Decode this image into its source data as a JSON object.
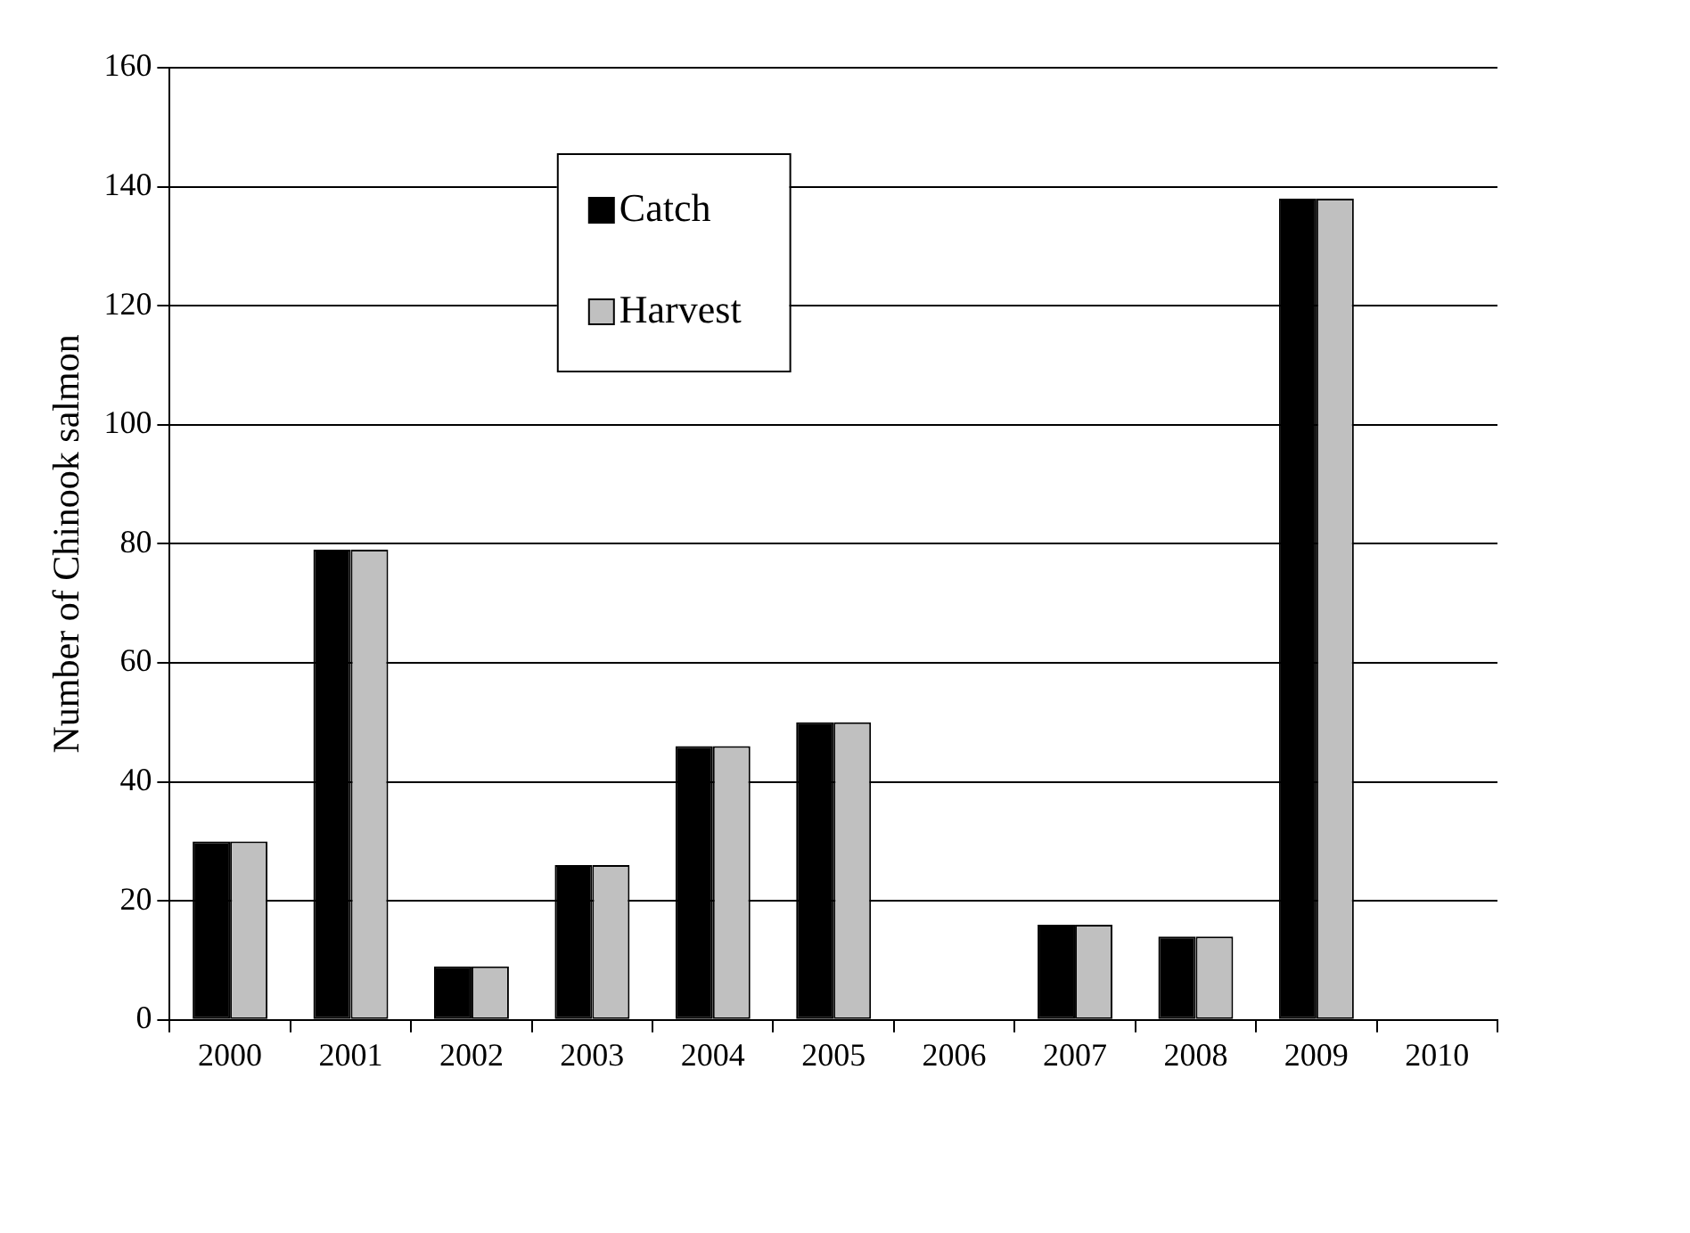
{
  "chart_data": {
    "type": "bar",
    "ylabel": "Number of Chinook salmon",
    "categories": [
      "2000",
      "2001",
      "2002",
      "2003",
      "2004",
      "2005",
      "2006",
      "2007",
      "2008",
      "2009",
      "2010"
    ],
    "series": [
      {
        "name": "Catch",
        "color": "#000000",
        "values": [
          30,
          79,
          9,
          26,
          46,
          50,
          0,
          16,
          14,
          138,
          0
        ]
      },
      {
        "name": "Harvest",
        "color": "#c0c0c0",
        "values": [
          30,
          79,
          9,
          26,
          46,
          50,
          0,
          16,
          14,
          138,
          0
        ]
      }
    ],
    "ylim": [
      0,
      160
    ],
    "yticks": [
      0,
      20,
      40,
      60,
      80,
      100,
      120,
      140,
      160
    ],
    "grid": "y",
    "legend": "top"
  }
}
